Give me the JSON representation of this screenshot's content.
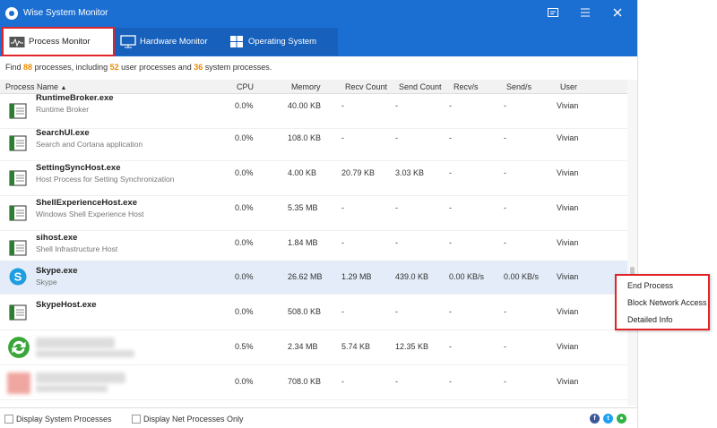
{
  "app": {
    "title": "Wise System Monitor"
  },
  "tabs": [
    {
      "label": "Process Monitor",
      "icon": "pulse-icon"
    },
    {
      "label": "Hardware Monitor",
      "icon": "monitor-icon"
    },
    {
      "label": "Operating System",
      "icon": "windows-logo-icon"
    }
  ],
  "summary": {
    "find": "Find",
    "total": "88",
    "mid1": "processes, including",
    "user": "52",
    "mid2": "user processes and",
    "system": "36",
    "end": "system processes."
  },
  "columns": {
    "name": "Process Name",
    "cpu": "CPU",
    "memory": "Memory",
    "recv_count": "Recv Count",
    "send_count": "Send Count",
    "recv_s": "Recv/s",
    "send_s": "Send/s",
    "user": "User"
  },
  "processes": [
    {
      "name": "RuntimeBroker.exe",
      "desc": "Runtime Broker",
      "cpu": "0.0%",
      "memory": "40.00 KB",
      "recv_count": "-",
      "send_count": "-",
      "recv_s": "-",
      "send_s": "-",
      "user": "Vivian"
    },
    {
      "name": "SearchUI.exe",
      "desc": "Search and Cortana application",
      "cpu": "0.0%",
      "memory": "108.0 KB",
      "recv_count": "-",
      "send_count": "-",
      "recv_s": "-",
      "send_s": "-",
      "user": "Vivian"
    },
    {
      "name": "SettingSyncHost.exe",
      "desc": "Host Process for Setting Synchronization",
      "cpu": "0.0%",
      "memory": "4.00 KB",
      "recv_count": "20.79 KB",
      "send_count": "3.03 KB",
      "recv_s": "-",
      "send_s": "-",
      "user": "Vivian"
    },
    {
      "name": "ShellExperienceHost.exe",
      "desc": "Windows Shell Experience Host",
      "cpu": "0.0%",
      "memory": "5.35 MB",
      "recv_count": "-",
      "send_count": "-",
      "recv_s": "-",
      "send_s": "-",
      "user": "Vivian"
    },
    {
      "name": "sihost.exe",
      "desc": "Shell Infrastructure Host",
      "cpu": "0.0%",
      "memory": "1.84 MB",
      "recv_count": "-",
      "send_count": "-",
      "recv_s": "-",
      "send_s": "-",
      "user": "Vivian"
    },
    {
      "name": "Skype.exe",
      "desc": "Skype",
      "cpu": "0.0%",
      "memory": "26.62 MB",
      "recv_count": "1.29 MB",
      "send_count": "439.0 KB",
      "recv_s": "0.00 KB/s",
      "send_s": "0.00 KB/s",
      "user": "Vivian"
    },
    {
      "name": "SkypeHost.exe",
      "desc": "",
      "cpu": "0.0%",
      "memory": "508.0 KB",
      "recv_count": "-",
      "send_count": "-",
      "recv_s": "-",
      "send_s": "-",
      "user": "Vivian"
    },
    {
      "name": "",
      "desc": "",
      "cpu": "0.5%",
      "memory": "2.34 MB",
      "recv_count": "5.74 KB",
      "send_count": "12.35 KB",
      "recv_s": "-",
      "send_s": "-",
      "user": "Vivian"
    },
    {
      "name": "",
      "desc": "",
      "cpu": "0.0%",
      "memory": "708.0 KB",
      "recv_count": "-",
      "send_count": "-",
      "recv_s": "-",
      "send_s": "-",
      "user": "Vivian"
    }
  ],
  "context_menu": {
    "end_process": "End Process",
    "block_network": "Block Network Access",
    "details": "Detailed Info"
  },
  "footer": {
    "system_processes": "Display System Processes",
    "net_processes": "Display Net Processes Only"
  },
  "colors": {
    "accent": "#1c6fd2",
    "highlight": "#e0262b",
    "count": "#e98a00",
    "selected_row": "#e3ecf8"
  }
}
